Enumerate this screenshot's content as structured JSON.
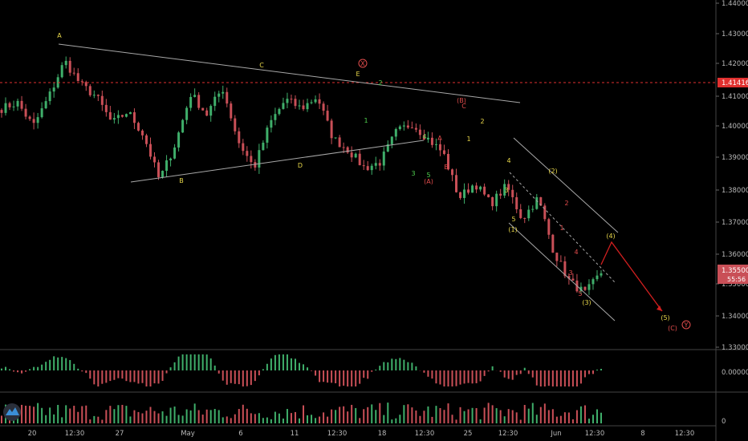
{
  "colors": {
    "background": "#000000",
    "up": "#3fae6a",
    "down": "#c94f57",
    "trendline": "#a8a8a8",
    "price_line": "#e0302f",
    "label_yellow": "#e9d84a",
    "label_green": "#4fd04f",
    "label_red": "#e24c4c",
    "projection": "#d01f1f",
    "grid": "#2a2a2a"
  },
  "chart_data": [
    {
      "type": "candlestick",
      "title": "",
      "y_ticks": [
        "1.44000",
        "1.43000",
        "1.42000",
        "1.41000",
        "1.40000",
        "1.39000",
        "1.38000",
        "1.37000",
        "1.36000",
        "1.35000",
        "1.34000",
        "1.33000"
      ],
      "x_ticks": [
        "20",
        "12:30",
        "27",
        "May",
        "6",
        "11",
        "12:30",
        "18",
        "12:30",
        "25",
        "12:30",
        "Jun",
        "12:30",
        "8",
        "12:30"
      ],
      "ylim": [
        1.33,
        1.445
      ],
      "current_price_label": "1.41416",
      "last_price_label": "1.35500",
      "countdown_label": "55:56",
      "trendlines": [
        {
          "name": "upper-triangle-line",
          "from": [
            "A",
            1.4265
          ],
          "to": [
            "end",
            1.408
          ]
        },
        {
          "name": "lower-triangle-line",
          "from": [
            "B",
            1.3825
          ],
          "to": [
            "pre-A",
            1.3965
          ]
        },
        {
          "name": "channel-upper",
          "from": [
            "start",
            1.4
          ],
          "to": [
            "end",
            1.365
          ]
        },
        {
          "name": "channel-lower",
          "from": [
            "start",
            1.381
          ],
          "to": [
            "end",
            1.3385
          ]
        }
      ],
      "wave_labels": [
        {
          "text": "A",
          "color": "yellow"
        },
        {
          "text": "B",
          "color": "yellow"
        },
        {
          "text": "C",
          "color": "yellow"
        },
        {
          "text": "D",
          "color": "yellow"
        },
        {
          "text": "E",
          "color": "yellow"
        },
        {
          "text": "X",
          "color": "red",
          "circled": true
        },
        {
          "text": "1",
          "color": "green"
        },
        {
          "text": "2",
          "color": "green"
        },
        {
          "text": "3",
          "color": "green"
        },
        {
          "text": "4",
          "color": "green"
        },
        {
          "text": "5",
          "color": "green"
        },
        {
          "text": "(A)",
          "color": "red"
        },
        {
          "text": "A",
          "color": "red"
        },
        {
          "text": "B",
          "color": "red"
        },
        {
          "text": "(B)",
          "color": "red"
        },
        {
          "text": "C",
          "color": "red"
        },
        {
          "text": "1",
          "color": "yellow"
        },
        {
          "text": "2",
          "color": "yellow"
        },
        {
          "text": "3",
          "color": "yellow"
        },
        {
          "text": "4",
          "color": "yellow"
        },
        {
          "text": "5",
          "color": "yellow"
        },
        {
          "text": "(1)",
          "color": "yellow"
        },
        {
          "text": "(2)",
          "color": "yellow"
        },
        {
          "text": "(3)",
          "color": "yellow"
        },
        {
          "text": "(4)",
          "color": "yellow"
        },
        {
          "text": "(5)",
          "color": "yellow"
        },
        {
          "text": "2",
          "color": "red"
        },
        {
          "text": "1",
          "color": "red"
        },
        {
          "text": "4",
          "color": "red"
        },
        {
          "text": "3",
          "color": "red"
        },
        {
          "text": "5",
          "color": "red"
        },
        {
          "text": "(C)",
          "color": "red"
        },
        {
          "text": "Y",
          "color": "red",
          "circled": true
        }
      ],
      "projection_path": [
        1.355,
        1.363,
        1.342
      ],
      "price_keypoints": [
        1.41,
        1.412,
        1.404,
        1.414,
        1.426,
        1.418,
        1.414,
        1.405,
        1.409,
        1.401,
        1.386,
        1.398,
        1.415,
        1.408,
        1.417,
        1.399,
        1.39,
        1.405,
        1.413,
        1.41,
        1.414,
        1.4,
        1.396,
        1.39,
        1.392,
        1.402,
        1.405,
        1.4,
        1.395,
        1.38,
        1.385,
        1.378,
        1.384,
        1.373,
        1.38,
        1.362,
        1.352,
        1.348,
        1.355
      ]
    },
    {
      "type": "histogram",
      "name": "oscillator",
      "y_ticks": [
        "0.00000"
      ]
    },
    {
      "type": "bar",
      "name": "volume",
      "y_ticks": [
        "0"
      ]
    }
  ]
}
